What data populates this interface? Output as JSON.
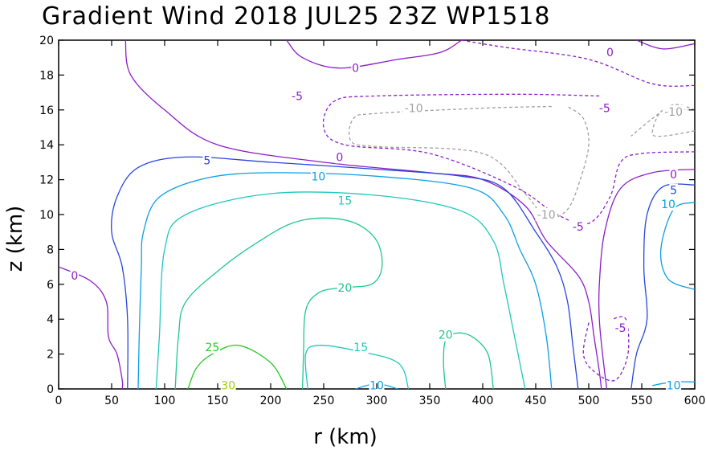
{
  "chart_data": {
    "type": "contour",
    "title": "Gradient Wind 2018 JUL25 23Z   WP1518",
    "xlabel": "r (km)",
    "ylabel": "z (km)",
    "xlim": [
      0,
      600
    ],
    "ylim": [
      0,
      20
    ],
    "x_ticks": [
      "0",
      "50",
      "100",
      "150",
      "200",
      "250",
      "300",
      "350",
      "400",
      "450",
      "500",
      "550",
      "600"
    ],
    "y_ticks": [
      "0",
      "2",
      "4",
      "6",
      "8",
      "10",
      "12",
      "14",
      "16",
      "18",
      "20"
    ],
    "contour_levels": [
      {
        "level": -10,
        "color": "#a0a0a0",
        "dashed": true
      },
      {
        "level": -5,
        "color": "#8c1ec8",
        "dashed": true
      },
      {
        "level": 0,
        "color": "#8c1ec8",
        "dashed": false
      },
      {
        "level": 5,
        "color": "#2846dc",
        "dashed": false
      },
      {
        "level": 10,
        "color": "#0aa0e6",
        "dashed": false
      },
      {
        "level": 15,
        "color": "#1ec8be",
        "dashed": false
      },
      {
        "level": 20,
        "color": "#1ec88c",
        "dashed": false
      },
      {
        "level": 25,
        "color": "#28c828",
        "dashed": false
      },
      {
        "level": 30,
        "color": "#a0d200",
        "dashed": false
      }
    ],
    "contours": [
      {
        "level": 0,
        "points": [
          [
            63,
            20
          ],
          [
            68,
            18
          ],
          [
            100,
            16
          ],
          [
            150,
            14
          ],
          [
            250,
            13
          ],
          [
            350,
            12.4
          ],
          [
            400,
            12
          ],
          [
            440,
            10.5
          ],
          [
            460,
            8.5
          ],
          [
            490,
            6.5
          ],
          [
            500,
            5
          ],
          [
            505,
            3
          ],
          [
            510,
            1
          ],
          [
            512,
            0
          ]
        ]
      },
      {
        "level": 0,
        "points": [
          [
            0,
            7
          ],
          [
            30,
            6.2
          ],
          [
            45,
            5
          ],
          [
            47,
            3
          ],
          [
            55,
            2
          ],
          [
            60,
            0.5
          ],
          [
            60,
            0
          ]
        ]
      },
      {
        "level": 0,
        "points": [
          [
            215,
            20
          ],
          [
            230,
            19
          ],
          [
            265,
            18.4
          ],
          [
            320,
            18.9
          ],
          [
            360,
            19.3
          ],
          [
            380,
            20
          ]
        ]
      },
      {
        "level": 0,
        "points": [
          [
            545,
            20
          ],
          [
            570,
            19.5
          ],
          [
            600,
            19.8
          ]
        ]
      },
      {
        "level": 0,
        "points": [
          [
            600,
            12.6
          ],
          [
            560,
            12.4
          ],
          [
            530,
            11.5
          ],
          [
            515,
            9
          ],
          [
            510,
            6
          ],
          [
            510,
            4
          ],
          [
            513,
            2
          ],
          [
            517,
            0
          ]
        ]
      },
      {
        "level": -5,
        "points": [
          [
            380,
            20
          ],
          [
            420,
            19.6
          ],
          [
            500,
            18.9
          ],
          [
            560,
            17.5
          ],
          [
            600,
            17.4
          ]
        ]
      },
      {
        "level": -5,
        "points": [
          [
            510,
            16.8
          ],
          [
            430,
            16.9
          ],
          [
            300,
            16.8
          ],
          [
            260,
            16.5
          ],
          [
            250,
            15
          ],
          [
            270,
            14
          ],
          [
            350,
            13.5
          ],
          [
            430,
            11.6
          ],
          [
            470,
            10
          ],
          [
            500,
            9.5
          ],
          [
            520,
            11
          ],
          [
            530,
            13
          ],
          [
            550,
            13.5
          ],
          [
            600,
            13.6
          ]
        ]
      },
      {
        "level": -5,
        "points": [
          [
            500,
            3.8
          ],
          [
            495,
            2
          ],
          [
            505,
            1
          ],
          [
            525,
            0.5
          ],
          [
            537,
            2
          ],
          [
            535,
            4
          ],
          [
            522,
            4
          ]
        ]
      },
      {
        "level": -10,
        "points": [
          [
            600,
            16
          ],
          [
            580,
            16.3
          ],
          [
            560,
            15.5
          ],
          [
            540,
            14.5
          ]
        ]
      },
      {
        "level": -10,
        "points": [
          [
            600,
            14.8
          ],
          [
            570,
            14.5
          ],
          [
            560,
            14.7
          ],
          [
            570,
            16
          ],
          [
            595,
            16
          ]
        ]
      },
      {
        "level": -10,
        "points": [
          [
            465,
            16.2
          ],
          [
            400,
            16.1
          ],
          [
            300,
            15.8
          ],
          [
            278,
            15.5
          ],
          [
            276,
            14.2
          ],
          [
            300,
            13.9
          ],
          [
            400,
            13.5
          ],
          [
            440,
            11.2
          ],
          [
            460,
            9.8
          ],
          [
            480,
            10.3
          ],
          [
            492,
            12
          ],
          [
            500,
            14
          ],
          [
            495,
            15.5
          ],
          [
            480,
            16.2
          ]
        ]
      },
      {
        "level": 5,
        "points": [
          [
            65,
            0
          ],
          [
            65,
            4
          ],
          [
            60,
            7
          ],
          [
            50,
            9
          ],
          [
            55,
            11
          ],
          [
            75,
            12.7
          ],
          [
            120,
            13.3
          ],
          [
            200,
            13
          ],
          [
            300,
            12.6
          ],
          [
            380,
            12.2
          ],
          [
            420,
            11.5
          ],
          [
            450,
            9
          ],
          [
            470,
            7
          ],
          [
            480,
            5
          ],
          [
            485,
            2.5
          ],
          [
            490,
            0
          ]
        ]
      },
      {
        "level": 5,
        "points": [
          [
            600,
            11.7
          ],
          [
            570,
            11.6
          ],
          [
            555,
            10
          ],
          [
            552,
            7
          ],
          [
            555,
            4
          ],
          [
            545,
            2
          ],
          [
            540,
            0
          ]
        ]
      },
      {
        "level": 10,
        "points": [
          [
            75,
            0
          ],
          [
            76,
            3
          ],
          [
            78,
            7
          ],
          [
            80,
            9
          ],
          [
            95,
            11
          ],
          [
            140,
            12.1
          ],
          [
            200,
            12.4
          ],
          [
            300,
            12.2
          ],
          [
            390,
            11.5
          ],
          [
            420,
            10
          ],
          [
            435,
            8
          ],
          [
            450,
            6
          ],
          [
            460,
            3
          ],
          [
            465,
            0
          ]
        ]
      },
      {
        "level": 10,
        "points": [
          [
            600,
            10.7
          ],
          [
            580,
            10.3
          ],
          [
            568,
            8
          ],
          [
            575,
            6.3
          ],
          [
            600,
            5.7
          ]
        ]
      },
      {
        "level": 10,
        "points": [
          [
            280,
            0
          ],
          [
            300,
            0.3
          ],
          [
            320,
            0
          ]
        ]
      },
      {
        "level": 10,
        "points": [
          [
            560,
            0.2
          ],
          [
            580,
            0.4
          ],
          [
            600,
            0.4
          ]
        ]
      },
      {
        "level": 15,
        "points": [
          [
            92,
            0
          ],
          [
            95,
            3
          ],
          [
            100,
            8
          ],
          [
            120,
            10
          ],
          [
            200,
            11.2
          ],
          [
            300,
            11.1
          ],
          [
            380,
            10.2
          ],
          [
            410,
            8.5
          ],
          [
            420,
            6
          ],
          [
            430,
            3
          ],
          [
            440,
            0
          ]
        ]
      },
      {
        "level": 15,
        "points": [
          [
            235,
            0
          ],
          [
            233,
            2
          ],
          [
            245,
            2.5
          ],
          [
            280,
            2.2
          ],
          [
            320,
            1.5
          ],
          [
            330,
            0
          ]
        ]
      },
      {
        "level": 20,
        "points": [
          [
            110,
            0
          ],
          [
            113,
            3
          ],
          [
            120,
            5
          ],
          [
            155,
            7
          ],
          [
            190,
            8.5
          ],
          [
            220,
            9.5
          ],
          [
            250,
            9.8
          ],
          [
            280,
            9.5
          ],
          [
            300,
            8.5
          ],
          [
            305,
            7
          ],
          [
            295,
            6
          ],
          [
            265,
            5.8
          ],
          [
            245,
            5.5
          ],
          [
            233,
            4.5
          ],
          [
            231,
            2
          ],
          [
            230,
            0
          ]
        ]
      },
      {
        "level": 20,
        "points": [
          [
            365,
            0
          ],
          [
            363,
            1.5
          ],
          [
            365,
            2.8
          ],
          [
            375,
            3.2
          ],
          [
            390,
            3
          ],
          [
            405,
            2
          ],
          [
            410,
            0
          ]
        ]
      },
      {
        "level": 25,
        "points": [
          [
            122,
            0
          ],
          [
            130,
            1.2
          ],
          [
            145,
            2
          ],
          [
            170,
            2.5
          ],
          [
            200,
            1.5
          ],
          [
            215,
            0
          ]
        ]
      },
      {
        "level": 30,
        "points": [
          [
            155,
            0
          ],
          [
            160,
            0.1
          ],
          [
            165,
            0
          ]
        ]
      }
    ],
    "labels": [
      {
        "text": "0",
        "r": 280,
        "z": 18.4,
        "level": 0
      },
      {
        "text": "0",
        "r": 520,
        "z": 19.3,
        "level": 0
      },
      {
        "text": "0",
        "r": 265,
        "z": 13.3,
        "level": 0
      },
      {
        "text": "0",
        "r": 15,
        "z": 6.5,
        "level": 0
      },
      {
        "text": "0",
        "r": 580,
        "z": 12.3,
        "level": 0
      },
      {
        "text": "-5",
        "r": 225,
        "z": 16.8,
        "level": -5
      },
      {
        "text": "-5",
        "r": 515,
        "z": 16.1,
        "level": -5
      },
      {
        "text": "-5",
        "r": 490,
        "z": 9.3,
        "level": -5
      },
      {
        "text": "-5",
        "r": 530,
        "z": 3.5,
        "level": -5
      },
      {
        "text": "-10",
        "r": 335,
        "z": 16.1,
        "level": -10
      },
      {
        "text": "-10",
        "r": 460,
        "z": 10,
        "level": -10
      },
      {
        "text": "-10",
        "r": 580,
        "z": 15.9,
        "level": -10
      },
      {
        "text": "5",
        "r": 140,
        "z": 13.1,
        "level": 5
      },
      {
        "text": "5",
        "r": 580,
        "z": 11.4,
        "level": 5
      },
      {
        "text": "10",
        "r": 245,
        "z": 12.2,
        "level": 10
      },
      {
        "text": "10",
        "r": 575,
        "z": 10.6,
        "level": 10
      },
      {
        "text": "10",
        "r": 300,
        "z": 0.2,
        "level": 10
      },
      {
        "text": "10",
        "r": 580,
        "z": 0.2,
        "level": 10
      },
      {
        "text": "15",
        "r": 270,
        "z": 10.8,
        "level": 15
      },
      {
        "text": "15",
        "r": 285,
        "z": 2.4,
        "level": 15
      },
      {
        "text": "20",
        "r": 270,
        "z": 5.8,
        "level": 20
      },
      {
        "text": "20",
        "r": 365,
        "z": 3.1,
        "level": 20
      },
      {
        "text": "25",
        "r": 145,
        "z": 2.4,
        "level": 25
      },
      {
        "text": "30",
        "r": 160,
        "z": 0.2,
        "level": 30
      }
    ]
  }
}
